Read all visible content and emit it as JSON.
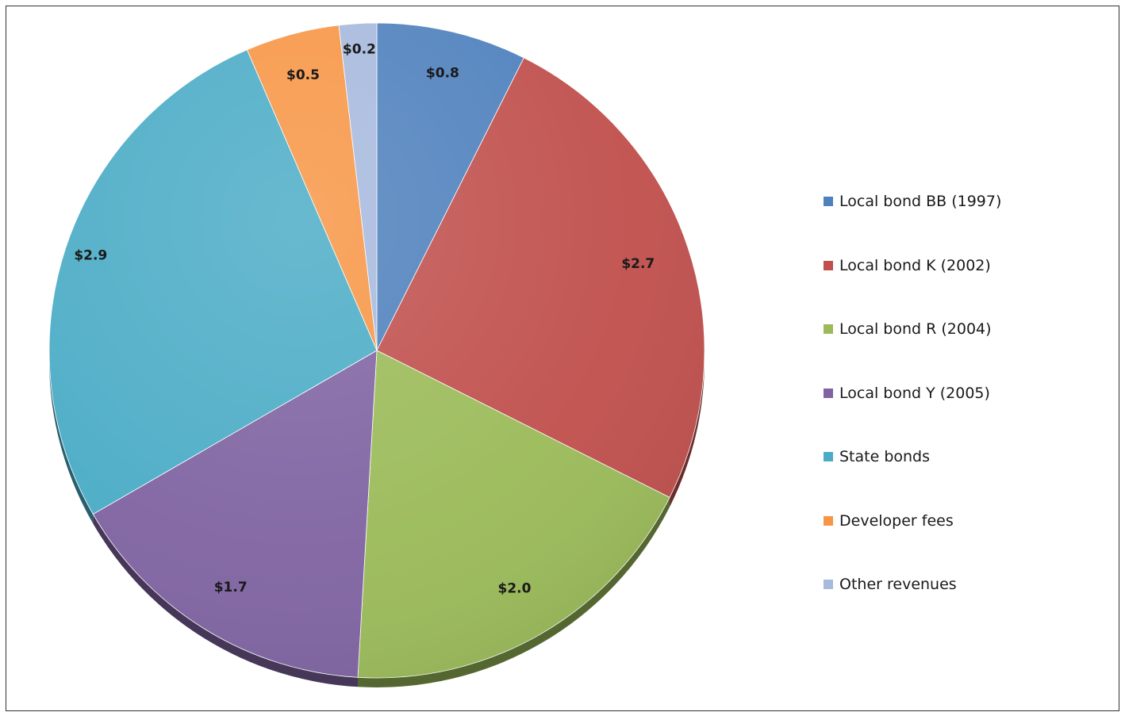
{
  "chart_data": {
    "type": "pie",
    "title": "",
    "series": [
      {
        "values": [
          0.8,
          2.7,
          2.0,
          1.7,
          2.9,
          0.5,
          0.2
        ]
      }
    ],
    "categories": [
      "Local bond BB (1997)",
      "Local bond K (2002)",
      "Local bond R (2004)",
      "Local bond Y (2005)",
      "State bonds",
      "Developer fees",
      "Other revenues"
    ],
    "data_labels": [
      "$0.8",
      "$2.7",
      "$2.0",
      "$1.7",
      "$2.9",
      "$0.5",
      "$0.2"
    ],
    "colors": [
      "#4f81bd",
      "#c0504d",
      "#9bbb59",
      "#8064a2",
      "#4bacc6",
      "#f79646",
      "#a7b9dd"
    ],
    "start_angle": "12 o'clock",
    "direction": "clockwise",
    "legend": "right"
  }
}
